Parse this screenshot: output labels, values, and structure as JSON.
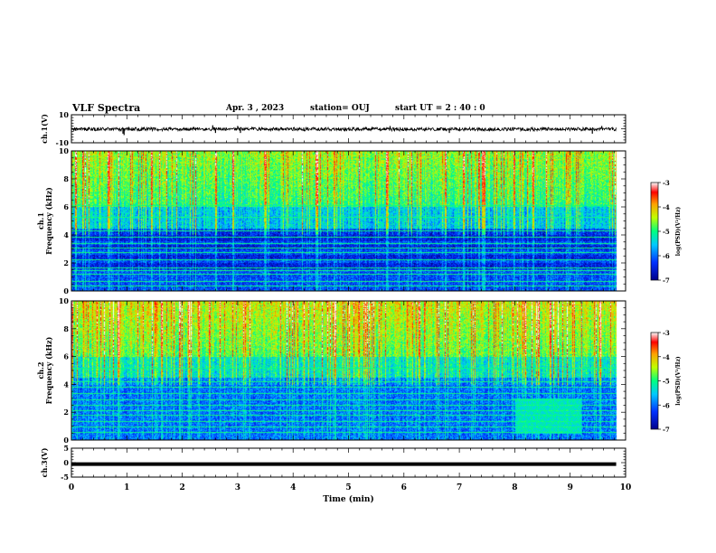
{
  "header": {
    "title": "VLF Spectra",
    "date": "Apr. 3 , 2023",
    "station": "station= OUJ",
    "start_time": "start UT = 2 : 40 : 0"
  },
  "chart_data": [
    {
      "type": "line",
      "panel": "ch.1 waveform",
      "ylabel": "ch.1(V)",
      "ylim": [
        -10,
        10
      ],
      "y_tick_labels": [
        "10",
        "-10"
      ],
      "x_range": [
        0,
        10
      ],
      "baseline_value": 0,
      "noise_band": [
        -1.5,
        1.0
      ],
      "spikes": [
        {
          "x": 0.93,
          "y": -3.5
        },
        {
          "x": 0.95,
          "y": -4.5
        },
        {
          "x": 2.55,
          "y": 2.5
        },
        {
          "x": 2.6,
          "y": -3.0
        },
        {
          "x": 3.0,
          "y": 2.0
        },
        {
          "x": 3.05,
          "y": -3.0
        },
        {
          "x": 5.75,
          "y": 2.0
        },
        {
          "x": 6.82,
          "y": -3.0
        },
        {
          "x": 9.4,
          "y": -3.5
        },
        {
          "x": 9.57,
          "y": 2.0
        }
      ]
    },
    {
      "type": "heatmap",
      "panel": "ch.1 spectrogram",
      "ylabel": "ch.1\nFrequency (kHz)",
      "ylim": [
        0,
        10
      ],
      "y_tick_labels": [
        "0",
        "2",
        "4",
        "6",
        "8",
        "10"
      ],
      "x_range": [
        0,
        10
      ],
      "data_end_min": 9.83,
      "colorbar": {
        "range": [
          -7,
          -3
        ],
        "tick_labels": [
          "-3",
          "-4",
          "-5",
          "-6",
          "-7"
        ],
        "label": "log(PSD)(V²/Hz)"
      },
      "lines_kHz": [
        0.4,
        0.7,
        1.2,
        1.5,
        1.65,
        2.25,
        2.75,
        3.1,
        3.4,
        3.85,
        4.3,
        5.3,
        6.1
      ],
      "dark_bands_kHz": [
        [
          1.6,
          2.0
        ],
        [
          2.3,
          2.6
        ],
        [
          3.0,
          3.3
        ],
        [
          3.6,
          4.4
        ]
      ]
    },
    {
      "type": "heatmap",
      "panel": "ch.2 spectrogram",
      "ylabel": "ch.2\nFrequency (kHz)",
      "ylim": [
        0,
        10
      ],
      "y_tick_labels": [
        "0",
        "2",
        "4",
        "6",
        "8",
        "10"
      ],
      "x_range": [
        0,
        10
      ],
      "data_end_min": 9.83,
      "colorbar": {
        "range": [
          -7,
          -3
        ],
        "tick_labels": [
          "-3",
          "-4",
          "-5",
          "-6",
          "-7"
        ],
        "label": "log(PSD)(V²/Hz)"
      },
      "lines_kHz": [
        0.6,
        1.0,
        1.35,
        1.8,
        2.15,
        2.55,
        2.95,
        3.35,
        3.8,
        4.2,
        5.2
      ],
      "bright_patch": {
        "x": [
          8.0,
          9.2
        ],
        "kHz": [
          0.5,
          3.0
        ]
      }
    },
    {
      "type": "line",
      "panel": "ch.3 waveform",
      "ylabel": "ch.3(V)",
      "ylim": [
        -5,
        5
      ],
      "y_tick_labels": [
        "5",
        "0",
        "-5"
      ],
      "x_range": [
        0,
        10
      ],
      "baseline_value": -0.5,
      "xlabel": "Time (min)",
      "x_tick_labels": [
        "0",
        "1",
        "2",
        "3",
        "4",
        "5",
        "6",
        "7",
        "8",
        "9",
        "10"
      ]
    }
  ]
}
